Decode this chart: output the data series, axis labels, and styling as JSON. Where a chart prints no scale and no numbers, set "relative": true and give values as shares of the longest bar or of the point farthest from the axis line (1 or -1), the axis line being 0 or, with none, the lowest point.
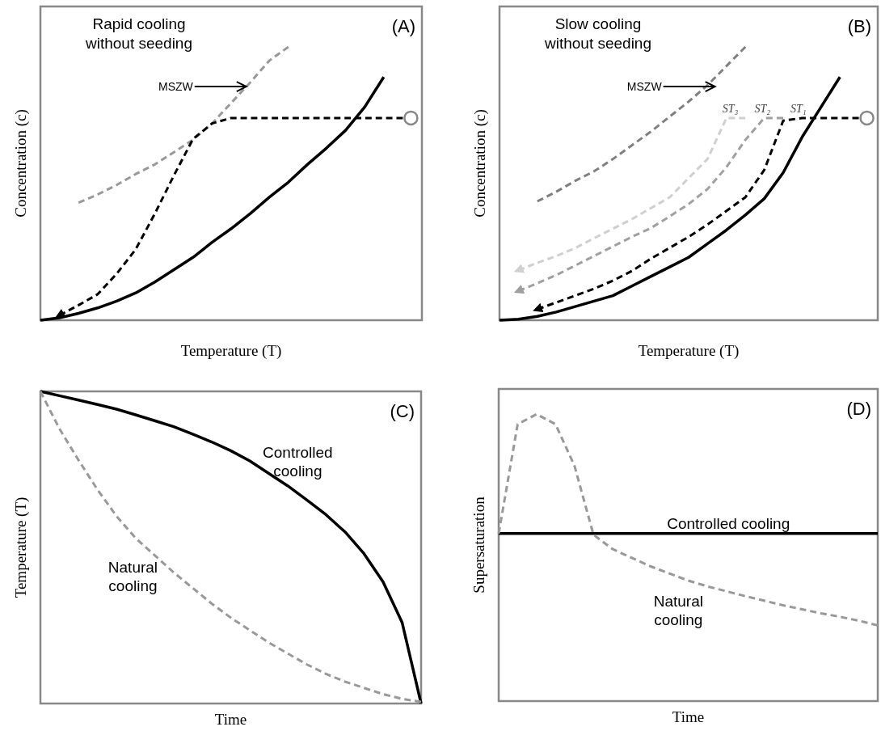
{
  "chart_data": [
    {
      "type": "line",
      "title": "Rapid cooling without seeding",
      "xlabel": "Temperature (T)",
      "ylabel": "Concentration (c)",
      "relative": true,
      "annotations": [
        "(A)",
        "MSZW"
      ],
      "categories": [
        null,
        null,
        null,
        null,
        null,
        null,
        null,
        null,
        null,
        null,
        null,
        null,
        null,
        null,
        null,
        null,
        null,
        null,
        null,
        null,
        null
      ],
      "series": [
        {
          "color": "#000000",
          "line_style": "solid",
          "values": [
            0,
            0.009,
            0.025,
            0.045,
            0.07,
            0.1,
            0.14,
            0.185,
            0.23,
            0.285,
            0.335,
            0.39,
            0.45,
            0.505,
            0.57,
            0.63,
            0.695,
            0.78,
            0.89,
            null,
            null
          ]
        },
        {
          "color": "#999999",
          "line_style": "dashed",
          "values": [
            null,
            null,
            0.43,
            0.46,
            0.495,
            0.535,
            0.57,
            0.615,
            0.66,
            0.72,
            0.795,
            0.87,
            0.95,
            1,
            null,
            null,
            null,
            null,
            null,
            null,
            null
          ]
        },
        {
          "color": "#000000",
          "line_style": "dashed",
          "values": [
            null,
            0.018,
            0.055,
            0.095,
            0.17,
            0.26,
            0.39,
            0.53,
            0.663,
            0.72,
            0.74,
            0.74,
            0.74,
            0.74,
            0.74,
            0.74,
            0.74,
            0.74,
            0.74,
            0.74,
            null
          ]
        }
      ]
    },
    {
      "type": "line",
      "title": "Slow cooling without seeding",
      "xlabel": "Temperature (T)",
      "ylabel": "Concentration (c)",
      "relative": true,
      "annotations": [
        "(B)",
        "MSZW",
        "ST₃",
        "ST₂",
        "ST₁"
      ],
      "categories": [
        null,
        null,
        null,
        null,
        null,
        null,
        null,
        null,
        null,
        null,
        null,
        null,
        null,
        null,
        null,
        null,
        null,
        null,
        null,
        null,
        null
      ],
      "series": [
        {
          "color": "#000000",
          "line_style": "solid",
          "values": [
            0,
            0.004,
            0.014,
            0.03,
            0.05,
            0.07,
            0.09,
            0.125,
            0.16,
            0.195,
            0.23,
            0.28,
            0.33,
            0.385,
            0.445,
            0.54,
            0.67,
            0.78,
            0.89,
            null,
            null
          ]
        },
        {
          "color": "#808080",
          "line_style": "dashed",
          "values": [
            null,
            null,
            0.435,
            0.47,
            0.51,
            0.545,
            0.59,
            0.64,
            0.69,
            0.745,
            0.8,
            0.86,
            0.93,
            1,
            null,
            null,
            null,
            null,
            null,
            null,
            null
          ]
        },
        {
          "color": "#d0d0d0",
          "line_style": "dashed",
          "values": [
            null,
            0.183,
            0.21,
            0.235,
            0.264,
            0.3,
            0.335,
            0.37,
            0.41,
            0.45,
            0.52,
            0.59,
            0.74,
            0.74,
            null,
            null,
            null,
            null,
            null,
            null,
            null
          ]
        },
        {
          "color": "#a0a0a0",
          "line_style": "dashed",
          "values": [
            null,
            0.107,
            0.135,
            0.165,
            0.2,
            0.235,
            0.27,
            0.305,
            0.337,
            0.38,
            0.425,
            0.48,
            0.56,
            0.66,
            0.74,
            0.74,
            null,
            null,
            null,
            null,
            null
          ]
        },
        {
          "color": "#000000",
          "line_style": "dashed",
          "values": [
            null,
            null,
            0.04,
            0.065,
            0.09,
            0.115,
            0.145,
            0.18,
            0.225,
            0.265,
            0.305,
            0.35,
            0.4,
            0.45,
            0.55,
            0.73,
            0.74,
            0.74,
            0.74,
            0.74,
            null
          ]
        }
      ]
    },
    {
      "type": "line",
      "xlabel": "Time",
      "ylabel": "Temperature (T)",
      "relative": true,
      "annotations": [
        "(C)"
      ],
      "categories": [
        null,
        null,
        null,
        null,
        null,
        null,
        null,
        null,
        null,
        null,
        null,
        null,
        null,
        null,
        null,
        null,
        null,
        null,
        null,
        null,
        null
      ],
      "series": [
        {
          "name": "Controlled cooling",
          "color": "#000000",
          "line_style": "solid",
          "values": [
            1,
            0.986,
            0.972,
            0.958,
            0.943,
            0.925,
            0.906,
            0.887,
            0.863,
            0.838,
            0.81,
            0.777,
            0.737,
            0.697,
            0.652,
            0.605,
            0.55,
            0.48,
            0.39,
            0.26,
            0
          ]
        },
        {
          "name": "Natural cooling",
          "color": "#999999",
          "line_style": "dashed",
          "values": [
            1,
            0.88,
            0.78,
            0.685,
            0.6,
            0.53,
            0.475,
            0.42,
            0.37,
            0.32,
            0.275,
            0.235,
            0.195,
            0.16,
            0.125,
            0.095,
            0.07,
            0.05,
            0.03,
            0.015,
            0.005
          ]
        }
      ]
    },
    {
      "type": "line",
      "xlabel": "Time",
      "ylabel": "Supersaturation",
      "relative": true,
      "annotations": [
        "(D)"
      ],
      "categories": [
        null,
        null,
        null,
        null,
        null,
        null,
        null,
        null,
        null,
        null,
        null,
        null,
        null,
        null,
        null,
        null,
        null,
        null,
        null,
        null,
        null
      ],
      "series": [
        {
          "name": "Controlled cooling",
          "color": "#000000",
          "line_style": "solid",
          "values": [
            0.584,
            0.584,
            0.584,
            0.584,
            0.584,
            0.584,
            0.584,
            0.584,
            0.584,
            0.584,
            0.584,
            0.584,
            0.584,
            0.584,
            0.584,
            0.584,
            0.584,
            0.584,
            0.584,
            0.584,
            0.584
          ]
        },
        {
          "name": "Natural cooling",
          "color": "#999999",
          "line_style": "dashed",
          "values": [
            0.584,
            0.965,
            1,
            0.965,
            0.82,
            0.58,
            0.53,
            0.5,
            0.47,
            0.445,
            0.42,
            0.4,
            0.383,
            0.366,
            0.35,
            0.334,
            0.32,
            0.306,
            0.294,
            0.28,
            0.264
          ]
        }
      ]
    }
  ]
}
